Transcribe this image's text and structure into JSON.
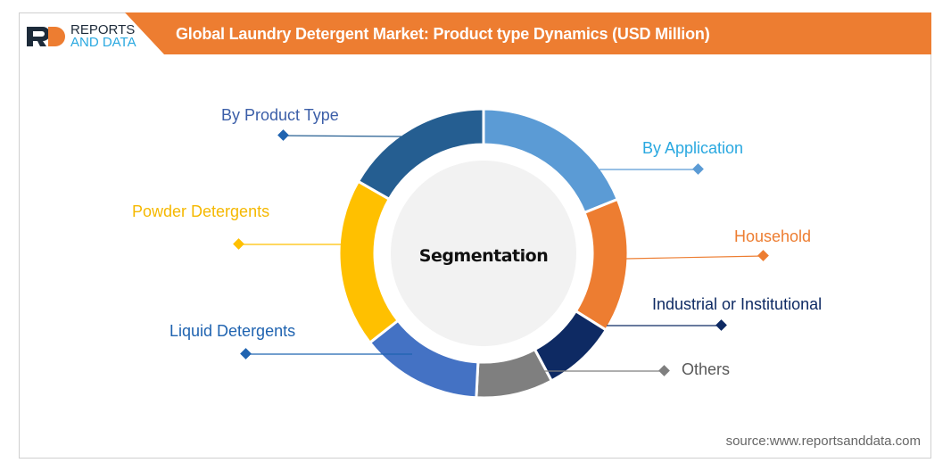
{
  "header": {
    "logo": {
      "mark": "RD",
      "line1": "REPORTS",
      "line2": "AND DATA"
    },
    "title": "Global Laundry Detergent Market: Product type Dynamics (USD Million)",
    "accent_color": "#ed7d31"
  },
  "chart_data": {
    "type": "pie",
    "variant": "donut",
    "title": "Global Laundry Detergent Market: Product type Dynamics (USD Million)",
    "center_label": "Segmentation",
    "segments": [
      {
        "label": "By Application",
        "color": "#5b9bd5",
        "share_pct": 18.9
      },
      {
        "label": "Household",
        "color": "#ed7d31",
        "share_pct": 15.0
      },
      {
        "label": "Industrial or Institutional",
        "color": "#0e2a63",
        "share_pct": 8.3
      },
      {
        "label": "Others",
        "color": "#7f7f7f",
        "share_pct": 8.6
      },
      {
        "label": "Liquid Detergents",
        "color": "#4472c4",
        "share_pct": 13.6
      },
      {
        "label": "Powder Detergents",
        "color": "#ffc000",
        "share_pct": 18.9
      },
      {
        "label": "By Product Type",
        "color": "#255e91",
        "share_pct": 16.7
      }
    ]
  },
  "labels": {
    "by_product_type": {
      "text": "By Product Type",
      "color": "#3b5ea8"
    },
    "powder": {
      "text": "Powder Detergents",
      "color": "#f5b800"
    },
    "liquid": {
      "text": "Liquid Detergents",
      "color": "#1f63b0"
    },
    "by_application": {
      "text": "By Application",
      "color": "#29a8e0"
    },
    "household": {
      "text": "Household",
      "color": "#ed7d31"
    },
    "industrial": {
      "text": "Industrial or Institutional",
      "color": "#0e2a63"
    },
    "others": {
      "text": "Others",
      "color": "#595959"
    }
  },
  "footer": {
    "source": "source:www.reportsanddata.com"
  }
}
